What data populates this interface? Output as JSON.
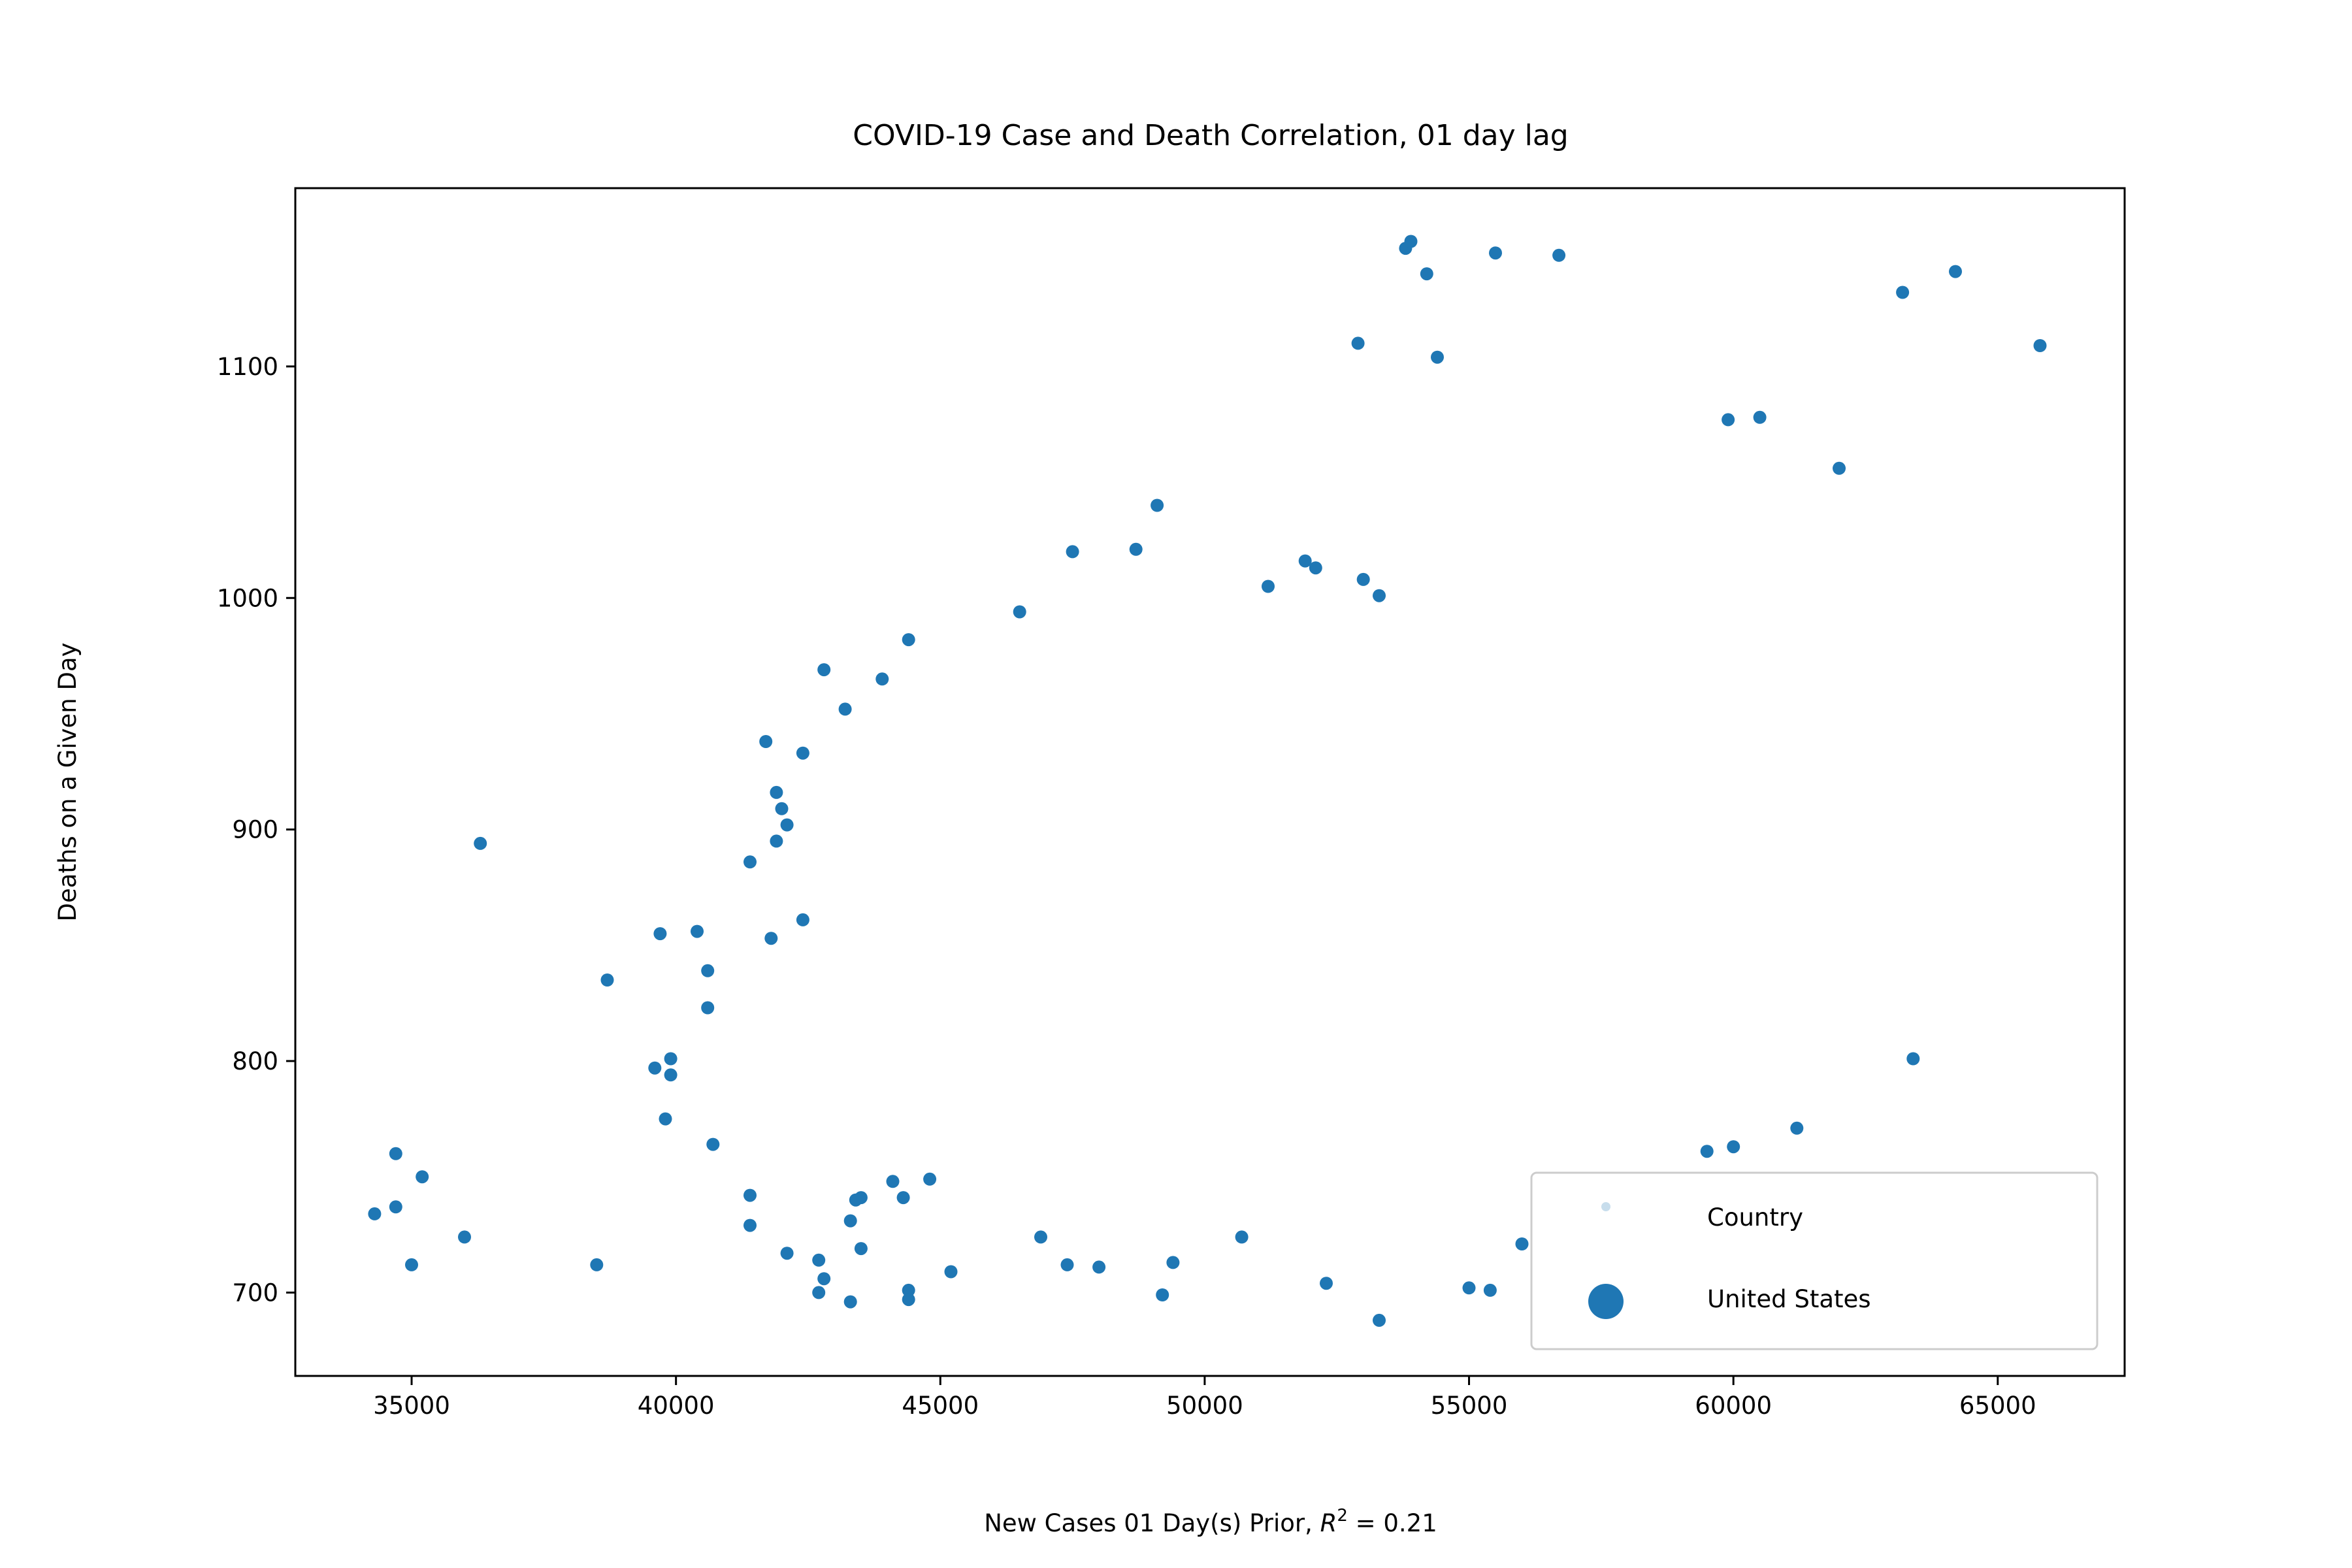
{
  "chart_data": {
    "type": "scatter",
    "title": "COVID-19 Case and Death Correlation, 01 day lag",
    "xlabel_prefix": "New Cases 01 Day(s) Prior, ",
    "xlabel_math_base": "R",
    "xlabel_math_sup": "2",
    "xlabel_suffix": " = 0.21",
    "ylabel": "Deaths on a Given Day",
    "xlim": [
      32800,
      67400
    ],
    "ylim": [
      664,
      1177
    ],
    "xticks": [
      35000,
      40000,
      45000,
      50000,
      55000,
      60000,
      65000
    ],
    "xtick_labels": [
      "35000",
      "40000",
      "45000",
      "50000",
      "55000",
      "60000",
      "65000"
    ],
    "yticks": [
      700,
      800,
      900,
      1000,
      1100
    ],
    "ytick_labels": [
      "700",
      "800",
      "900",
      "1000",
      "1100"
    ],
    "grid": false,
    "legend_position": "lower right",
    "color": "#1f77b4",
    "legend": [
      {
        "label": "Country",
        "marker": "tiny"
      },
      {
        "label": "United States",
        "marker": "large"
      }
    ],
    "series": [
      {
        "name": "United States",
        "points": [
          [
            34300,
            734
          ],
          [
            34700,
            737
          ],
          [
            34700,
            760
          ],
          [
            35000,
            712
          ],
          [
            35200,
            750
          ],
          [
            36000,
            724
          ],
          [
            36300,
            894
          ],
          [
            38500,
            712
          ],
          [
            38700,
            835
          ],
          [
            39600,
            797
          ],
          [
            39700,
            855
          ],
          [
            39800,
            775
          ],
          [
            39900,
            801
          ],
          [
            39900,
            794
          ],
          [
            40400,
            856
          ],
          [
            40600,
            839
          ],
          [
            40600,
            823
          ],
          [
            40700,
            764
          ],
          [
            41400,
            742
          ],
          [
            41400,
            729
          ],
          [
            41400,
            886
          ],
          [
            41700,
            938
          ],
          [
            41800,
            853
          ],
          [
            41900,
            895
          ],
          [
            41900,
            916
          ],
          [
            42000,
            909
          ],
          [
            42100,
            902
          ],
          [
            42100,
            717
          ],
          [
            42400,
            861
          ],
          [
            42400,
            933
          ],
          [
            42700,
            714
          ],
          [
            42700,
            700
          ],
          [
            42800,
            969
          ],
          [
            42800,
            706
          ],
          [
            43200,
            952
          ],
          [
            43300,
            731
          ],
          [
            43300,
            696
          ],
          [
            43400,
            740
          ],
          [
            43500,
            741
          ],
          [
            43500,
            719
          ],
          [
            43900,
            965
          ],
          [
            44100,
            748
          ],
          [
            44300,
            741
          ],
          [
            44400,
            701
          ],
          [
            44400,
            697
          ],
          [
            44400,
            982
          ],
          [
            44800,
            749
          ],
          [
            45200,
            709
          ],
          [
            46500,
            994
          ],
          [
            46900,
            724
          ],
          [
            47400,
            712
          ],
          [
            47500,
            1020
          ],
          [
            48000,
            711
          ],
          [
            48700,
            1021
          ],
          [
            49100,
            1040
          ],
          [
            49200,
            699
          ],
          [
            49400,
            713
          ],
          [
            50700,
            724
          ],
          [
            51200,
            1005
          ],
          [
            51900,
            1016
          ],
          [
            52100,
            1013
          ],
          [
            52300,
            704
          ],
          [
            52900,
            1110
          ],
          [
            53000,
            1008
          ],
          [
            53300,
            1001
          ],
          [
            53300,
            688
          ],
          [
            53800,
            1151
          ],
          [
            53900,
            1154
          ],
          [
            54200,
            1140
          ],
          [
            54400,
            1104
          ],
          [
            55000,
            702
          ],
          [
            55400,
            701
          ],
          [
            55500,
            1149
          ],
          [
            56000,
            721
          ],
          [
            56700,
            1148
          ],
          [
            59500,
            761
          ],
          [
            59900,
            1077
          ],
          [
            60000,
            763
          ],
          [
            60500,
            1078
          ],
          [
            61200,
            771
          ],
          [
            62000,
            1056
          ],
          [
            63200,
            1132
          ],
          [
            63400,
            801
          ],
          [
            64200,
            1141
          ],
          [
            65800,
            1109
          ]
        ]
      }
    ]
  }
}
